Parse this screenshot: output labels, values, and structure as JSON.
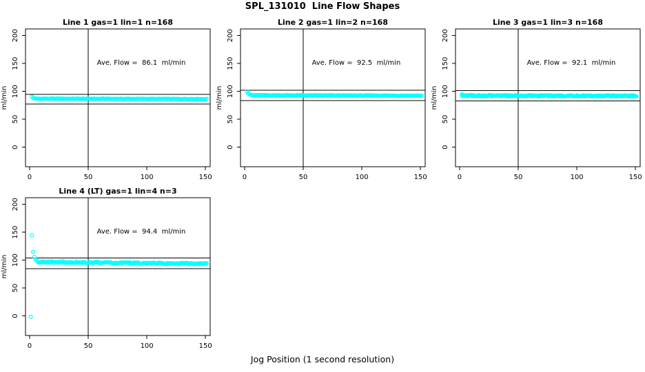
{
  "chart_data": {
    "type": "scatter",
    "title": "SPL_131010  Line Flow Shapes",
    "xlabel": "Jog Position (1 second resolution)",
    "ylabel": "ml/min",
    "x_range": [
      -3.5,
      154
    ],
    "y_range": [
      -35,
      212
    ],
    "x_ticks": [
      0,
      50,
      100,
      150
    ],
    "y_ticks": [
      0,
      50,
      100,
      150,
      200
    ],
    "vline_x": 50,
    "grid": false,
    "legend": "none",
    "marker": "open-circle",
    "point_color": "#00FFFF",
    "line_color": "#000000",
    "panels": [
      {
        "title": "Line 1 gas=1 lin=1 n=168",
        "annotation": "Ave. Flow =  86.1  ml/min",
        "ave_flow_ml_min": 86.1,
        "n": 168,
        "ref_lines": [
          94.7,
          77.5
        ],
        "series": {
          "transient": [
            [
              2,
              90.5
            ],
            [
              3,
              88.3
            ],
            [
              4,
              87.4
            ]
          ],
          "band_x_start": 5,
          "x_end": 151,
          "x_step": 1,
          "steady_start": 87.0,
          "steady_end": 86.3,
          "noise_amp": 0.55,
          "seed": 1
        }
      },
      {
        "title": "Line 2 gas=1 lin=2 n=168",
        "annotation": "Ave. Flow =  92.5  ml/min",
        "ave_flow_ml_min": 92.5,
        "n": 168,
        "ref_lines": [
          101.8,
          83.3
        ],
        "series": {
          "transient": [
            [
              2,
              100.2
            ],
            [
              3,
              97.0
            ],
            [
              4,
              95.2
            ],
            [
              5,
              94.2
            ]
          ],
          "band_x_start": 6,
          "x_end": 151,
          "x_step": 1,
          "steady_start": 93.2,
          "steady_end": 92.3,
          "noise_amp": 0.55,
          "seed": 2
        }
      },
      {
        "title": "Line 3 gas=1 lin=3 n=168",
        "annotation": "Ave. Flow =  92.1  ml/min",
        "ave_flow_ml_min": 92.1,
        "n": 168,
        "ref_lines": [
          101.3,
          82.9
        ],
        "series": {
          "transient": [
            [
              2,
              94.8
            ]
          ],
          "band_x_start": 2,
          "x_end": 151,
          "x_step": 0.6,
          "steady_start": 92.4,
          "steady_end": 91.9,
          "noise_amp": 1.1,
          "seed": 3
        }
      },
      {
        "title": "Line 4 (LT) gas=1 lin=4 n=3",
        "annotation": "Ave. Flow =  94.4  ml/min",
        "ave_flow_ml_min": 94.4,
        "n": 3,
        "ref_lines": [
          103.8,
          85.0
        ],
        "series": {
          "transient": [
            [
              1,
              -1.5
            ],
            [
              2,
              144.5
            ],
            [
              3,
              115.0
            ],
            [
              4,
              106.0
            ],
            [
              5,
              101.5
            ],
            [
              6,
              99.5
            ]
          ],
          "band_x_start": 7,
          "x_end": 151,
          "x_step": 0.8,
          "steady_start": 97.0,
          "steady_end": 93.4,
          "noise_amp": 1.4,
          "seed": 4
        }
      }
    ]
  }
}
